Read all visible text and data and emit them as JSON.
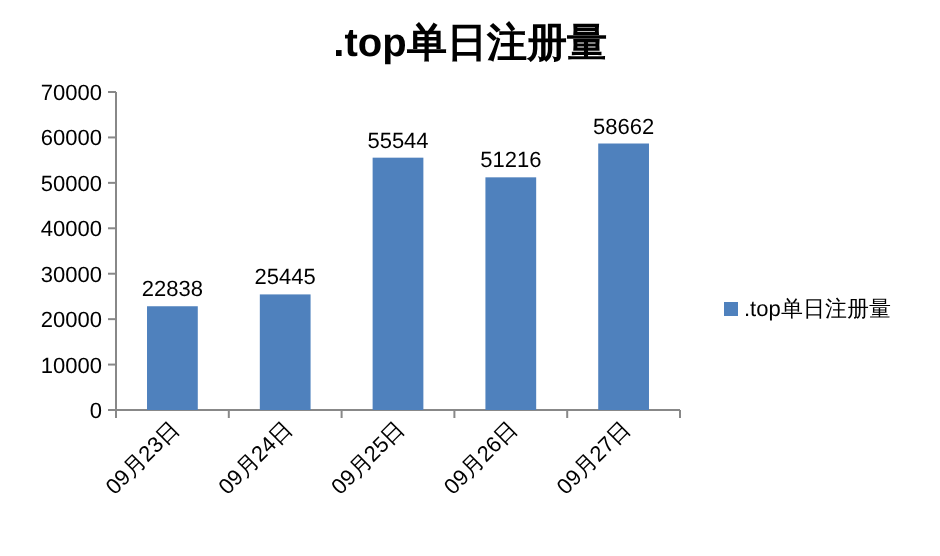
{
  "chart_data": {
    "type": "bar",
    "title": ".top单日注册量",
    "categories": [
      "09月23日",
      "09月24日",
      "09月25日",
      "09月26日",
      "09月27日"
    ],
    "series": [
      {
        "name": ".top单日注册量",
        "color": "#4f81bd",
        "values": [
          22838,
          25445,
          55544,
          51216,
          58662
        ]
      }
    ],
    "ylim": [
      0,
      70000
    ],
    "yticks": [
      0,
      10000,
      20000,
      30000,
      40000,
      50000,
      60000,
      70000
    ],
    "data_labels": true,
    "legend": "right",
    "grid": false
  }
}
